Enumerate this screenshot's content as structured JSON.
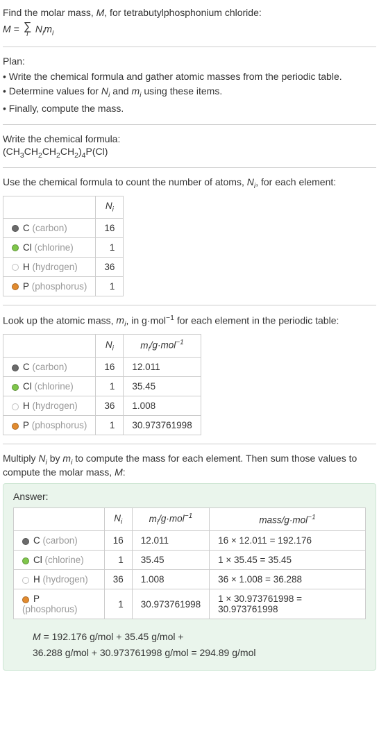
{
  "intro": {
    "line1": "Find the molar mass, M, for tetrabutylphosphonium chloride:",
    "formula_lhs": "M",
    "formula_eq": " = ",
    "formula_sum_var": "i",
    "formula_rhs": "Nᵢmᵢ"
  },
  "plan": {
    "title": "Plan:",
    "items": [
      "• Write the chemical formula and gather atomic masses from the periodic table.",
      "• Determine values for Nᵢ and mᵢ using these items.",
      "• Finally, compute the mass."
    ]
  },
  "chemformula": {
    "title": "Write the chemical formula:",
    "value": "(CH₃CH₂CH₂CH₂)₄P(Cl)"
  },
  "count": {
    "title": "Use the chemical formula to count the number of atoms, Nᵢ, for each element:",
    "header_ni": "Nᵢ",
    "rows": [
      {
        "color": "#6b6b6b",
        "sym": "C",
        "name": "(carbon)",
        "ni": "16"
      },
      {
        "color": "#7fc64b",
        "sym": "Cl",
        "name": "(chlorine)",
        "ni": "1"
      },
      {
        "color": "#ffffff",
        "sym": "H",
        "name": "(hydrogen)",
        "ni": "36"
      },
      {
        "color": "#e28b2f",
        "sym": "P",
        "name": "(phosphorus)",
        "ni": "1"
      }
    ]
  },
  "lookup": {
    "title": "Look up the atomic mass, mᵢ, in g·mol⁻¹ for each element in the periodic table:",
    "header_ni": "Nᵢ",
    "header_mi": "mᵢ/g·mol⁻¹",
    "rows": [
      {
        "color": "#6b6b6b",
        "sym": "C",
        "name": "(carbon)",
        "ni": "16",
        "mi": "12.011"
      },
      {
        "color": "#7fc64b",
        "sym": "Cl",
        "name": "(chlorine)",
        "ni": "1",
        "mi": "35.45"
      },
      {
        "color": "#ffffff",
        "sym": "H",
        "name": "(hydrogen)",
        "ni": "36",
        "mi": "1.008"
      },
      {
        "color": "#e28b2f",
        "sym": "P",
        "name": "(phosphorus)",
        "ni": "1",
        "mi": "30.973761998"
      }
    ]
  },
  "multiply": {
    "title": "Multiply Nᵢ by mᵢ to compute the mass for each element. Then sum those values to compute the molar mass, M:"
  },
  "answer": {
    "title": "Answer:",
    "header_ni": "Nᵢ",
    "header_mi": "mᵢ/g·mol⁻¹",
    "header_mass": "mass/g·mol⁻¹",
    "rows": [
      {
        "color": "#6b6b6b",
        "sym": "C",
        "name": "(carbon)",
        "ni": "16",
        "mi": "12.011",
        "mass": "16 × 12.011 = 192.176"
      },
      {
        "color": "#7fc64b",
        "sym": "Cl",
        "name": "(chlorine)",
        "ni": "1",
        "mi": "35.45",
        "mass": "1 × 35.45 = 35.45"
      },
      {
        "color": "#ffffff",
        "sym": "H",
        "name": "(hydrogen)",
        "ni": "36",
        "mi": "1.008",
        "mass": "36 × 1.008 = 36.288"
      },
      {
        "color": "#e28b2f",
        "sym": "P",
        "name": "(phosphorus)",
        "ni": "1",
        "mi": "30.973761998",
        "mass": "1 × 30.973761998 = 30.973761998"
      }
    ],
    "final_l1": "M = 192.176 g/mol + 35.45 g/mol +",
    "final_l2": "36.288 g/mol + 30.973761998 g/mol = 294.89 g/mol"
  },
  "style": {
    "table_border": "#cccccc",
    "answer_bg": "#eaf5ec",
    "answer_border": "#cde6d3",
    "muted": "#999999"
  }
}
